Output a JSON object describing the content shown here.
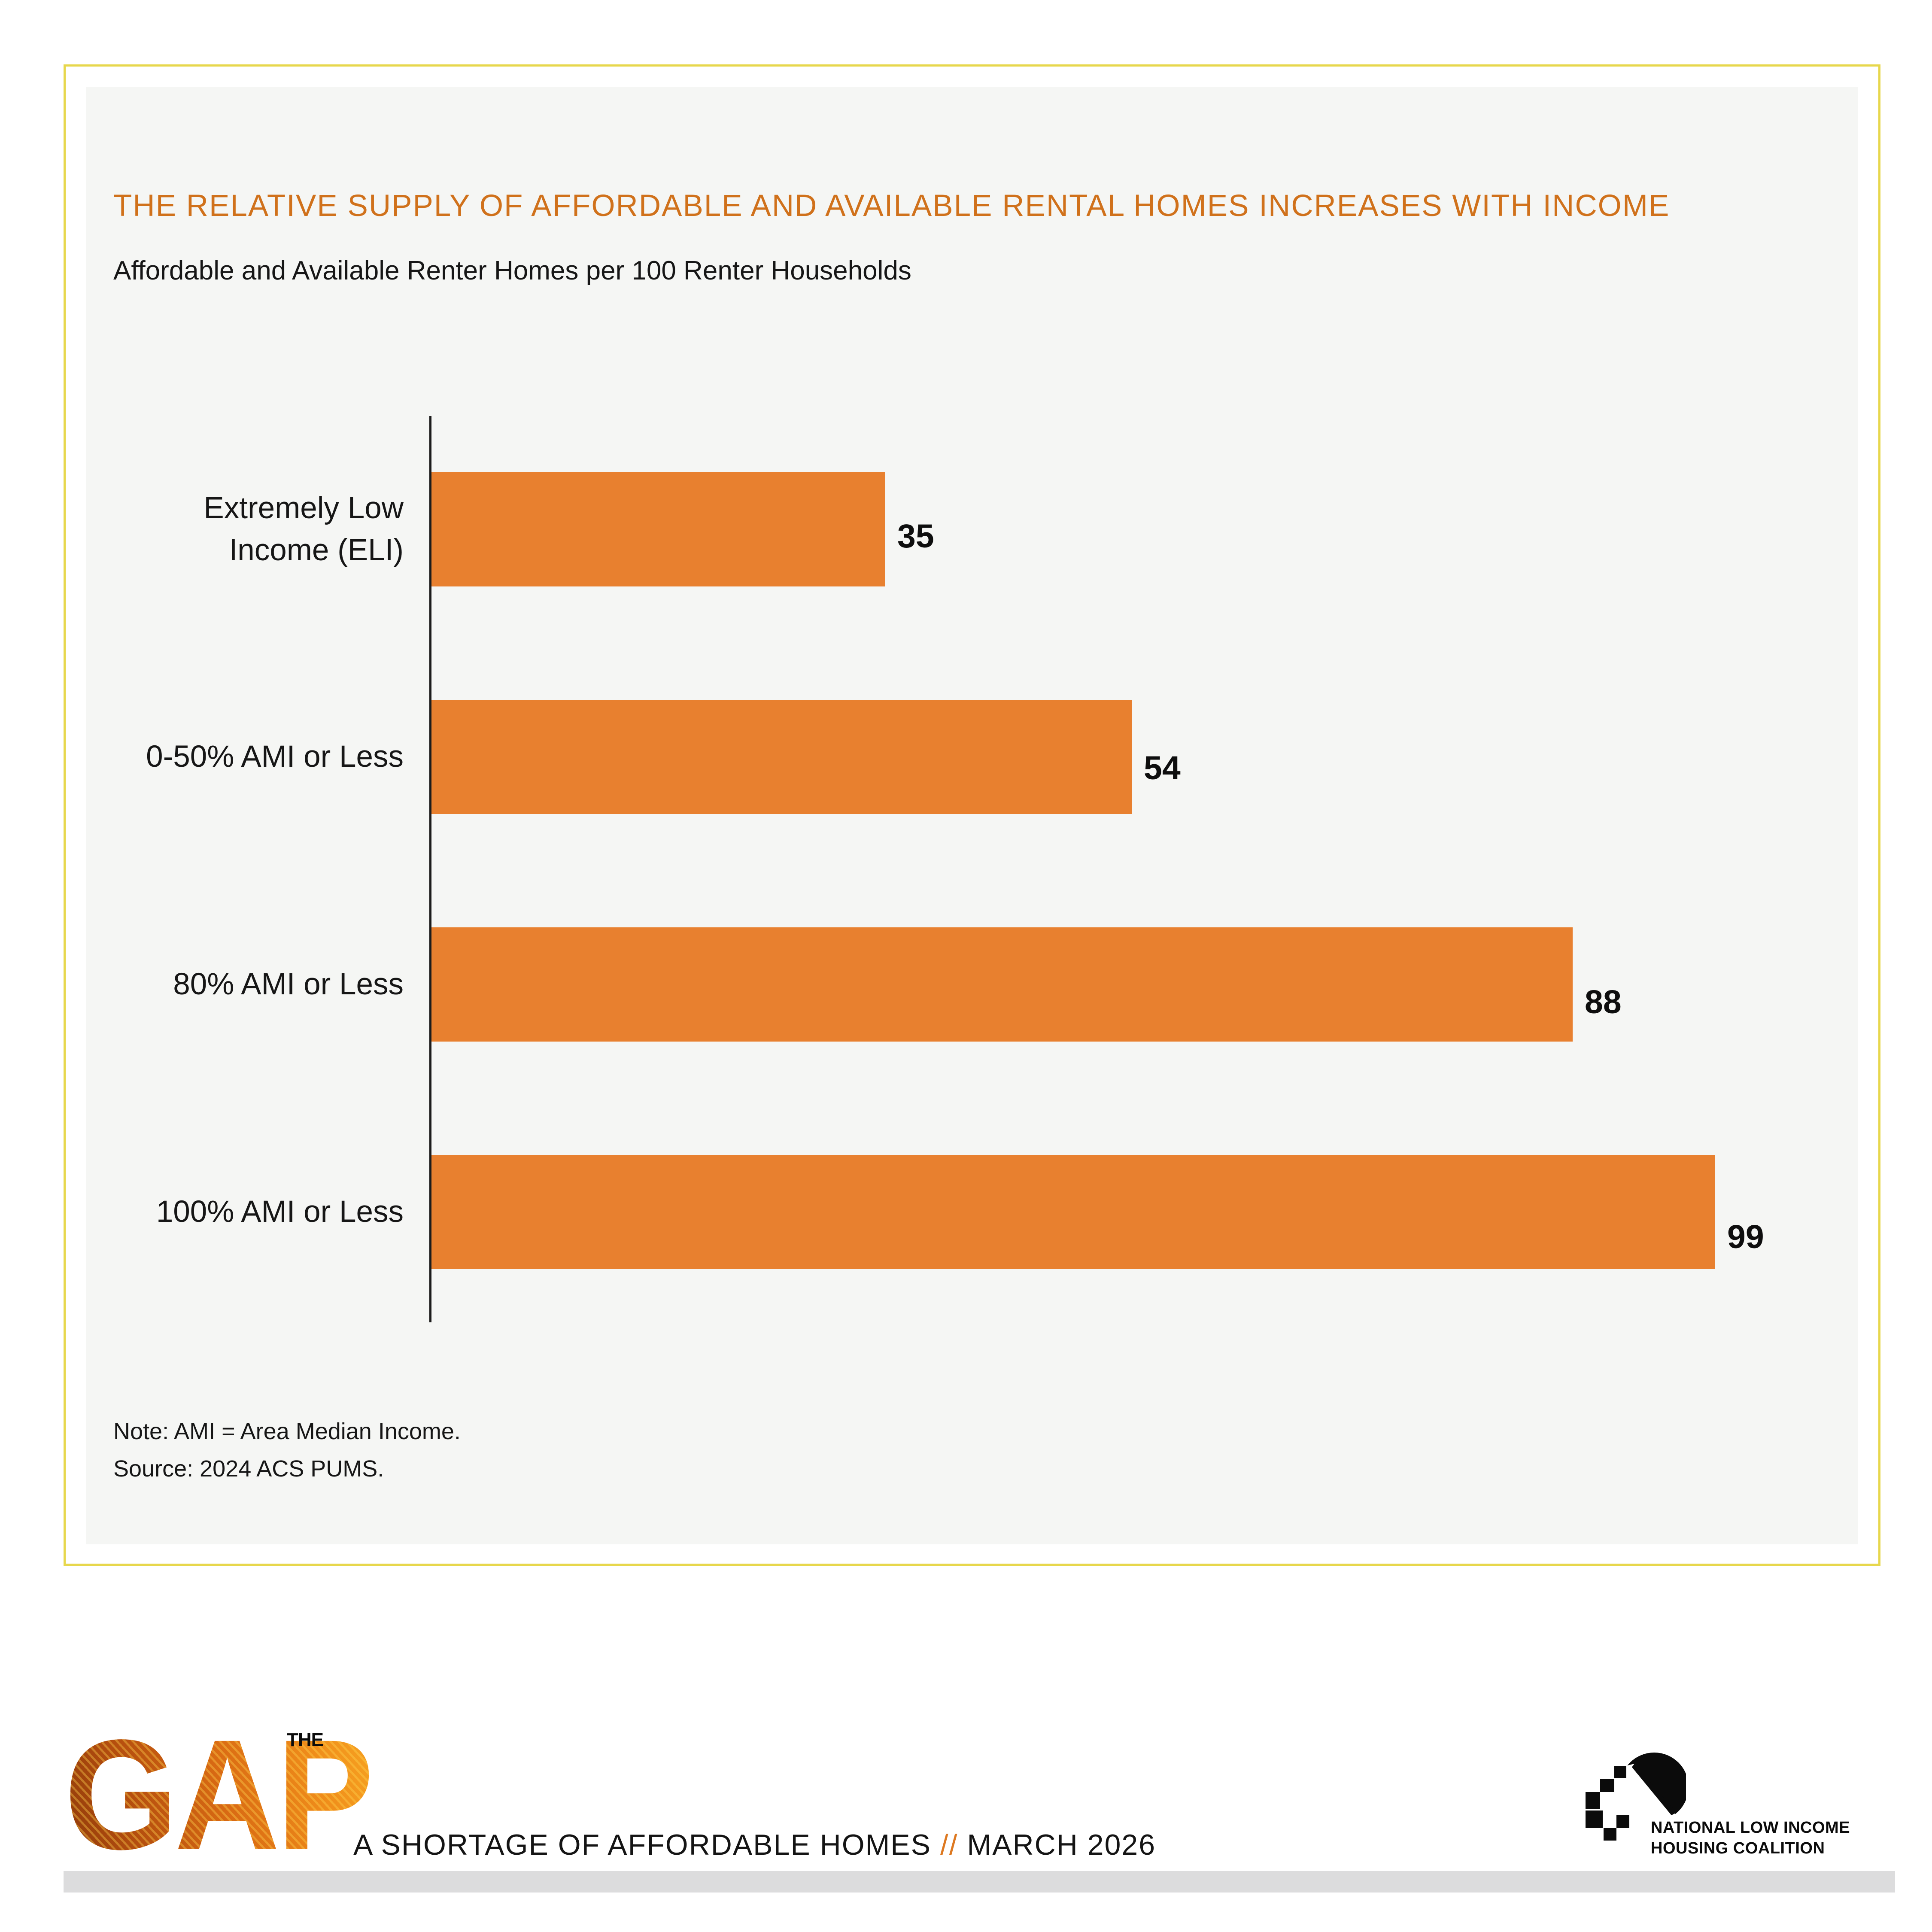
{
  "panel": {
    "title": "THE RELATIVE SUPPLY OF AFFORDABLE AND AVAILABLE RENTAL HOMES INCREASES WITH INCOME",
    "subtitle": "Affordable and Available Renter Homes per 100 Renter Households",
    "note": "Note: AMI = Area Median Income.",
    "source": "Source: 2024 ACS PUMS."
  },
  "chart_data": {
    "type": "bar",
    "orientation": "horizontal",
    "title": "THE RELATIVE SUPPLY OF AFFORDABLE AND AVAILABLE RENTAL HOMES INCREASES WITH INCOME",
    "subtitle": "Affordable and Available Renter Homes per 100 Renter Households",
    "categories": [
      "Extremely Low\nIncome (ELI)",
      "0-50% AMI or Less",
      "80% AMI or Less",
      "100% AMI or Less"
    ],
    "values": [
      35,
      54,
      88,
      99
    ],
    "xlabel": "",
    "ylabel": "",
    "xlim": [
      0,
      110
    ],
    "grid": false,
    "legend": false,
    "value_labels": [
      35,
      54,
      88,
      99
    ],
    "bar_color": "#E8802F"
  },
  "footer": {
    "gap_logo": {
      "the": "THE",
      "gap": "GAP"
    },
    "tagline": {
      "pre": "A SHORTAGE OF AFFORDABLE HOMES ",
      "slashes": "//",
      "post": " MARCH 2026"
    },
    "nlihc": {
      "line1": "NATIONAL LOW INCOME",
      "line2": "HOUSING COALITION",
      "icon": "nlihc-house-icon"
    }
  },
  "colors": {
    "accent_orange": "#D0711B",
    "bar_orange": "#E8802F",
    "border_yellow": "#E7D74C",
    "panel_bg": "#F5F6F4",
    "footer_strip_gray": "#DCDCDD"
  }
}
